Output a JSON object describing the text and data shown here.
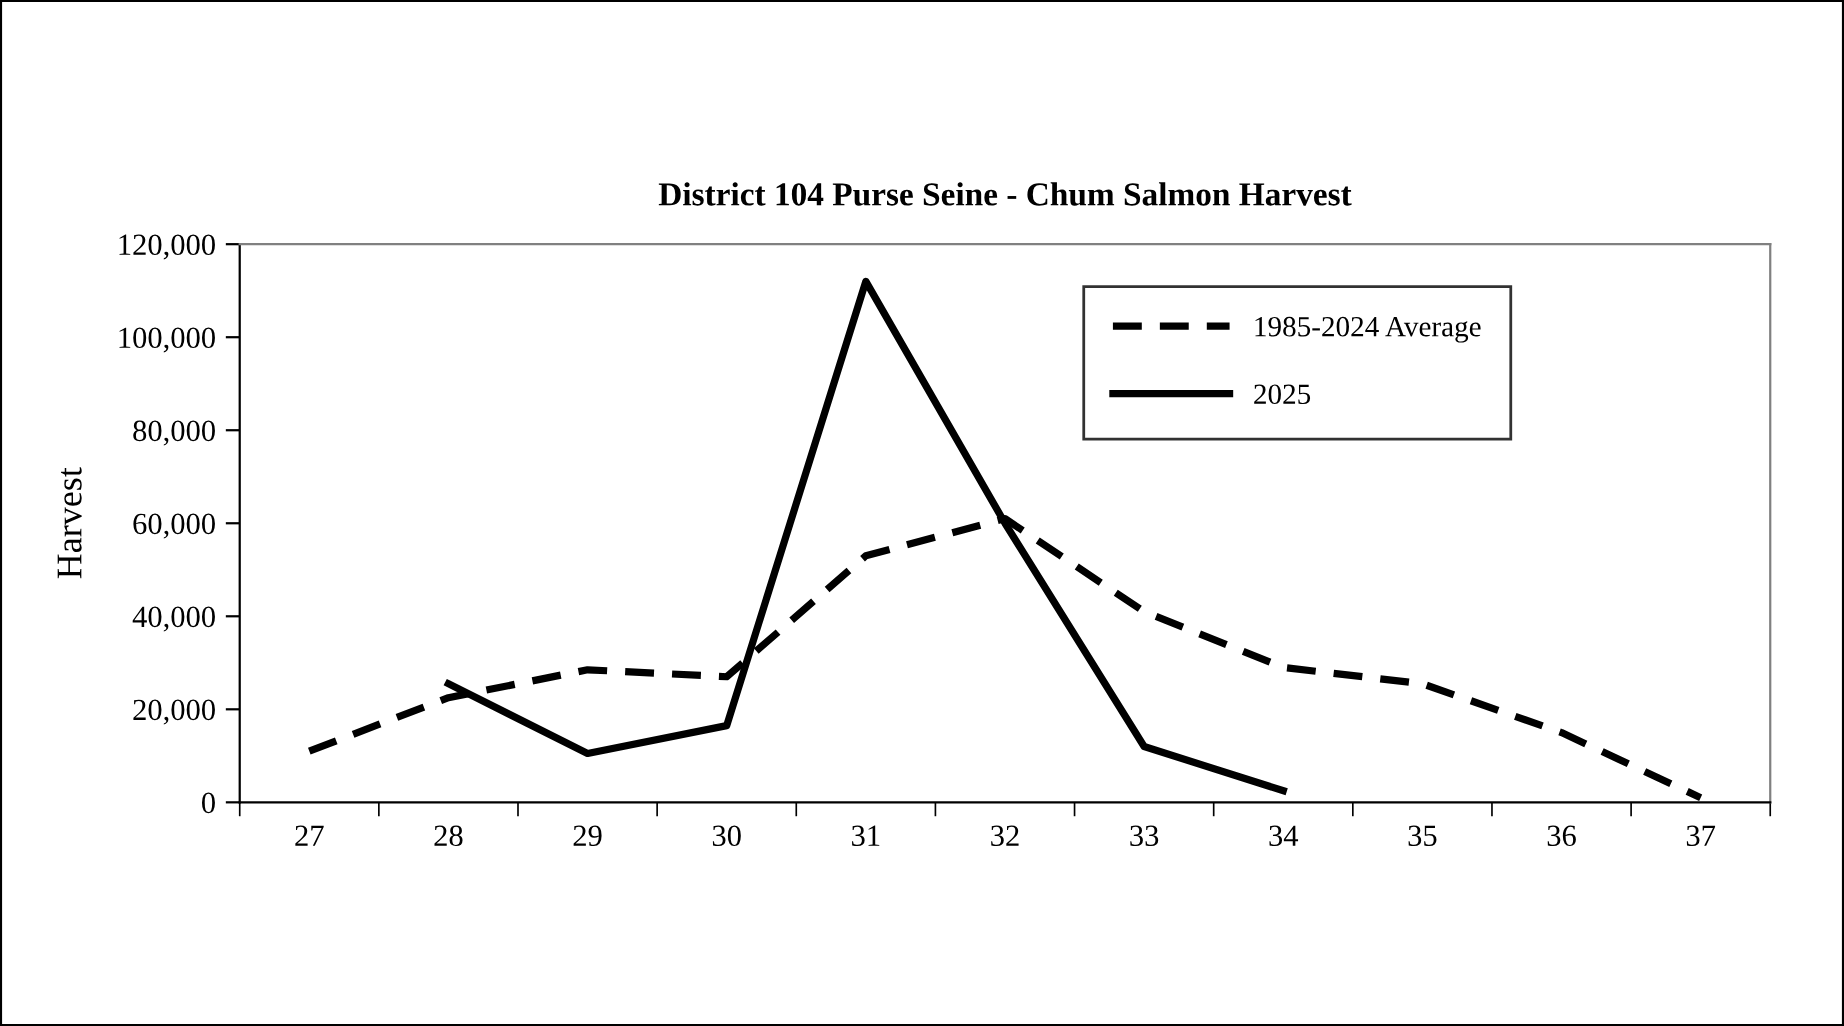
{
  "chart_data": {
    "type": "line",
    "title": "District 104 Purse Seine - Chum Salmon Harvest",
    "ylabel": "Harvest",
    "categories": [
      "27",
      "28",
      "29",
      "30",
      "31",
      "32",
      "33",
      "34",
      "35",
      "36",
      "37"
    ],
    "series": [
      {
        "name": "1985-2024 Average",
        "color": "#000000",
        "line_style": "dashed",
        "values": [
          11000,
          22500,
          28500,
          27000,
          53000,
          61000,
          41000,
          29000,
          25500,
          15000,
          1000
        ]
      },
      {
        "name": "2025",
        "color": "#000000",
        "line_style": "solid",
        "values": [
          null,
          25500,
          10500,
          16500,
          112000,
          60000,
          12000,
          2500,
          null,
          null,
          null
        ]
      }
    ],
    "ylim": [
      0,
      120000
    ],
    "yticks": [
      {
        "value": 0,
        "label": "0"
      },
      {
        "value": 20000,
        "label": "20,000"
      },
      {
        "value": 40000,
        "label": "40,000"
      },
      {
        "value": 60000,
        "label": "60,000"
      },
      {
        "value": 80000,
        "label": "80,000"
      },
      {
        "value": 100000,
        "label": "100,000"
      },
      {
        "value": 120000,
        "label": "120,000"
      }
    ],
    "grid": false,
    "legend": "top right",
    "marker": "none"
  }
}
